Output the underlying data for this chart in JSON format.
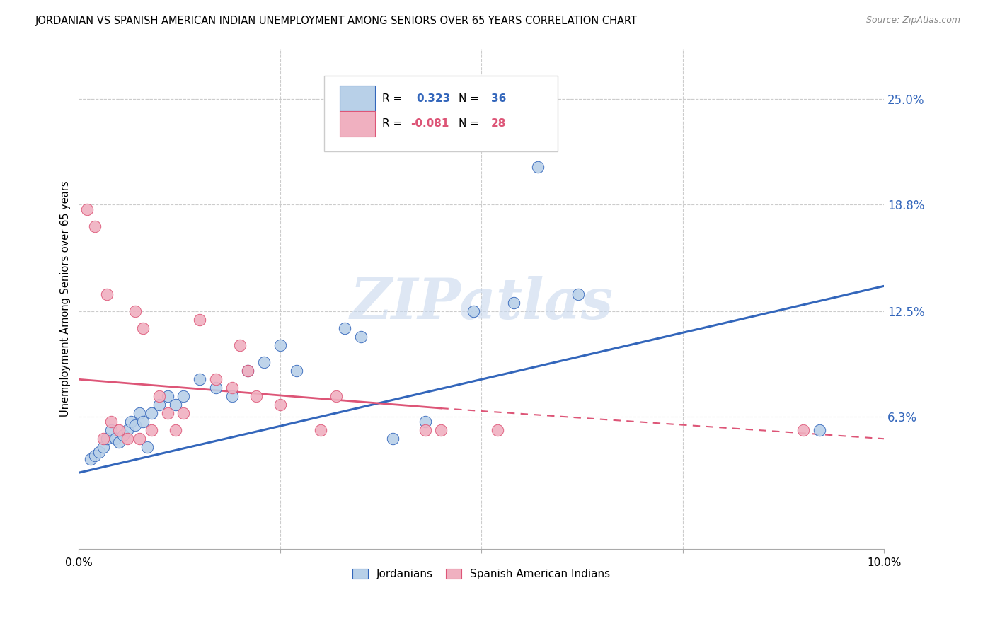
{
  "title": "JORDANIAN VS SPANISH AMERICAN INDIAN UNEMPLOYMENT AMONG SENIORS OVER 65 YEARS CORRELATION CHART",
  "source": "Source: ZipAtlas.com",
  "ylabel": "Unemployment Among Seniors over 65 years",
  "xlim": [
    0.0,
    10.0
  ],
  "ylim": [
    -1.5,
    28.0
  ],
  "yticks": [
    0.0,
    6.3,
    12.5,
    18.8,
    25.0
  ],
  "ytick_labels": [
    "",
    "6.3%",
    "12.5%",
    "18.8%",
    "25.0%"
  ],
  "blue_R": 0.323,
  "blue_N": 36,
  "pink_R": -0.081,
  "pink_N": 28,
  "blue_color": "#b8d0e8",
  "pink_color": "#f0b0c0",
  "blue_line_color": "#3366bb",
  "pink_line_color": "#dd5577",
  "background_color": "#ffffff",
  "watermark": "ZIPatlas",
  "watermark_color": "#c8d8ee",
  "blue_scatter_x": [
    0.15,
    0.2,
    0.25,
    0.3,
    0.35,
    0.4,
    0.45,
    0.5,
    0.55,
    0.6,
    0.65,
    0.7,
    0.75,
    0.8,
    0.85,
    0.9,
    1.0,
    1.1,
    1.2,
    1.3,
    1.5,
    1.7,
    1.9,
    2.1,
    2.3,
    2.5,
    2.7,
    3.3,
    3.5,
    3.9,
    4.3,
    4.9,
    5.4,
    5.7,
    6.2,
    9.2
  ],
  "blue_scatter_y": [
    3.8,
    4.0,
    4.2,
    4.5,
    5.0,
    5.5,
    5.0,
    4.8,
    5.2,
    5.5,
    6.0,
    5.8,
    6.5,
    6.0,
    4.5,
    6.5,
    7.0,
    7.5,
    7.0,
    7.5,
    8.5,
    8.0,
    7.5,
    9.0,
    9.5,
    10.5,
    9.0,
    11.5,
    11.0,
    5.0,
    6.0,
    12.5,
    13.0,
    21.0,
    13.5,
    5.5
  ],
  "pink_scatter_x": [
    0.1,
    0.2,
    0.3,
    0.35,
    0.4,
    0.5,
    0.6,
    0.7,
    0.75,
    0.8,
    0.9,
    1.0,
    1.1,
    1.2,
    1.3,
    1.5,
    1.7,
    1.9,
    2.0,
    2.1,
    2.2,
    2.5,
    3.0,
    3.2,
    4.3,
    4.5,
    5.2,
    9.0
  ],
  "pink_scatter_y": [
    18.5,
    17.5,
    5.0,
    13.5,
    6.0,
    5.5,
    5.0,
    12.5,
    5.0,
    11.5,
    5.5,
    7.5,
    6.5,
    5.5,
    6.5,
    12.0,
    8.5,
    8.0,
    10.5,
    9.0,
    7.5,
    7.0,
    5.5,
    7.5,
    5.5,
    5.5,
    5.5,
    5.5
  ],
  "blue_trend": [
    0.0,
    3.0,
    10.0,
    14.0
  ],
  "pink_solid_trend": [
    0.0,
    8.5,
    4.5,
    6.8
  ],
  "pink_dash_trend": [
    4.5,
    6.8,
    10.0,
    5.0
  ],
  "grid_color": "#cccccc",
  "grid_xticks": [
    2.5,
    5.0,
    7.5
  ],
  "spine_color": "#aaaaaa"
}
